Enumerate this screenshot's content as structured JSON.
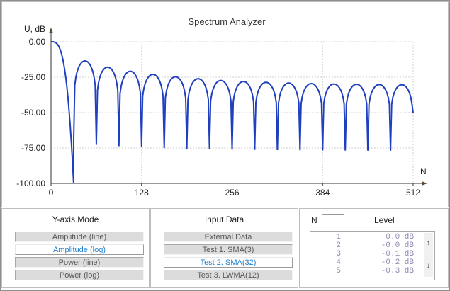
{
  "chart_data": {
    "type": "line",
    "title": "Spectrum Analyzer",
    "xlabel": "N",
    "ylabel": "U, dB",
    "xlim": [
      0,
      512
    ],
    "ylim": [
      -100,
      0
    ],
    "x_ticks": [
      "0",
      "128",
      "256",
      "384",
      "512"
    ],
    "x_tick_values": [
      0,
      128,
      256,
      384,
      512
    ],
    "y_ticks": [
      "0.00",
      "-25.00",
      "-50.00",
      "-75.00",
      "-100.00"
    ],
    "y_tick_values": [
      0,
      -25,
      -50,
      -75,
      -100
    ],
    "grid": true,
    "series": [
      {
        "color": "#1f3fbf",
        "main_lobe": {
          "x_start": 0,
          "x_end": 32,
          "peak": 0
        },
        "side_lobes": [
          {
            "x_start": 32,
            "x_end": 64,
            "peak": -13.5
          },
          {
            "x_start": 64,
            "x_end": 96,
            "peak": -17.9
          },
          {
            "x_start": 96,
            "x_end": 128,
            "peak": -20.8
          },
          {
            "x_start": 128,
            "x_end": 160,
            "peak": -23.0
          },
          {
            "x_start": 160,
            "x_end": 192,
            "peak": -24.7
          },
          {
            "x_start": 192,
            "x_end": 224,
            "peak": -26.1
          },
          {
            "x_start": 224,
            "x_end": 256,
            "peak": -27.3
          },
          {
            "x_start": 256,
            "x_end": 288,
            "peak": -28.0
          },
          {
            "x_start": 288,
            "x_end": 320,
            "peak": -28.6
          },
          {
            "x_start": 320,
            "x_end": 352,
            "peak": -29.1
          },
          {
            "x_start": 352,
            "x_end": 384,
            "peak": -29.5
          },
          {
            "x_start": 384,
            "x_end": 416,
            "peak": -29.8
          },
          {
            "x_start": 416,
            "x_end": 448,
            "peak": -30.0
          },
          {
            "x_start": 448,
            "x_end": 480,
            "peak": -30.2
          },
          {
            "x_start": 480,
            "x_end": 512,
            "peak": -30.3
          }
        ],
        "null_level": -100,
        "end_value": -50
      }
    ]
  },
  "yaxis_panel": {
    "title": "Y-axis Mode",
    "options": [
      "Amplitude (line)",
      "Amplitude (log)",
      "Power (line)",
      "Power (log)"
    ],
    "selected": "Amplitude (log)"
  },
  "input_panel": {
    "title": "Input Data",
    "options": [
      "External Data",
      "Test 1. SMA(3)",
      "Test 2. SMA(32)",
      "Test 3. LWMA(12)"
    ],
    "selected": "Test 2. SMA(32)"
  },
  "level_panel": {
    "n_label": "N",
    "n_value": "",
    "level_label": "Level",
    "rows": [
      {
        "index": "1",
        "value": " 0.0 dB"
      },
      {
        "index": "2",
        "value": "-0.0 dB"
      },
      {
        "index": "3",
        "value": "-0.1 dB"
      },
      {
        "index": "4",
        "value": "-0.2 dB"
      },
      {
        "index": "5",
        "value": "-0.3 dB"
      }
    ],
    "scroll_up": "↑",
    "scroll_down": "↓"
  }
}
